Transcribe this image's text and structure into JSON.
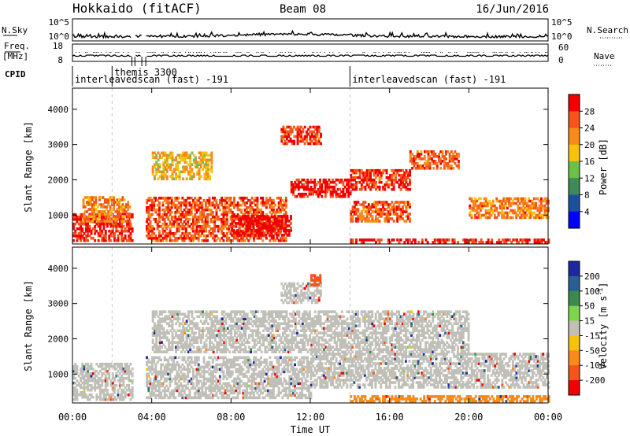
{
  "header": {
    "station": "Hokkaido (fitACF)",
    "beam": "Beam 08",
    "date": "16/Jun/2016"
  },
  "status_panels": {
    "nsky_label": "N.Sky",
    "nsearch_label": "N.Search",
    "freq_label_line1": "Freq.",
    "freq_label_line2": "[MHz]",
    "nave_label": "Nave",
    "cpid_label": "CPID",
    "noise_axis_ticks": [
      "10^5",
      "10^0"
    ],
    "freq_axis_ticks": [
      "18",
      "8"
    ],
    "nave_axis_ticks": [
      "60",
      "0"
    ],
    "cpid_segments": [
      {
        "label": "interleavedscan (fast) -191",
        "start_hour": 0.0
      },
      {
        "label": "themis 3300",
        "start_hour": 2.0
      },
      {
        "label": "interleavedscan (fast) -191",
        "start_hour": 14.0
      }
    ]
  },
  "axes": {
    "xlabel": "Time UT",
    "x_ticks": [
      "00:00",
      "04:00",
      "08:00",
      "12:00",
      "16:00",
      "20:00",
      "00:00"
    ],
    "ylabel": "Slant Range [km]",
    "y_ticks": [
      "1000",
      "2000",
      "3000",
      "4000"
    ]
  },
  "chart_data": [
    {
      "type": "heatmap",
      "name": "power",
      "xlim_hours": [
        0,
        24
      ],
      "ylim_km": [
        180,
        4600
      ],
      "colorbar_label": "Power [dB]",
      "colorbar_ticks": [
        "4",
        "8",
        "12",
        "16",
        "20",
        "24",
        "28"
      ],
      "colorbar_range": [
        0,
        30
      ],
      "colors": [
        "#0000ff",
        "#1c4fa0",
        "#3d8a5a",
        "#6cc04a",
        "#f6c20e",
        "#f98a1a",
        "#f5541a",
        "#f00000"
      ],
      "data_gaps_hours": [
        [
          3.0,
          3.15
        ],
        [
          3.5,
          3.7
        ]
      ],
      "echo_regions": [
        {
          "start_hour": 0.0,
          "end_hour": 3.0,
          "range_km": [
            250,
            1000
          ],
          "power_db": 28
        },
        {
          "start_hour": 0.5,
          "end_hour": 2.9,
          "range_km": [
            800,
            1500
          ],
          "power_db": 22
        },
        {
          "start_hour": 3.7,
          "end_hour": 10.8,
          "range_km": [
            250,
            1500
          ],
          "power_db": 25
        },
        {
          "start_hour": 8.0,
          "end_hour": 11.0,
          "range_km": [
            400,
            1000
          ],
          "power_db": 30
        },
        {
          "start_hour": 4.0,
          "end_hour": 7.0,
          "range_km": [
            2000,
            2800
          ],
          "power_db": 18
        },
        {
          "start_hour": 10.5,
          "end_hour": 12.5,
          "range_km": [
            3000,
            3500
          ],
          "power_db": 27
        },
        {
          "start_hour": 11.0,
          "end_hour": 14.0,
          "range_km": [
            1500,
            2000
          ],
          "power_db": 29
        },
        {
          "start_hour": 14.0,
          "end_hour": 17.0,
          "range_km": [
            1700,
            2300
          ],
          "power_db": 27
        },
        {
          "start_hour": 14.0,
          "end_hour": 17.0,
          "range_km": [
            800,
            1400
          ],
          "power_db": 24
        },
        {
          "start_hour": 17.0,
          "end_hour": 19.5,
          "range_km": [
            2300,
            2800
          ],
          "power_db": 24
        },
        {
          "start_hour": 20.0,
          "end_hour": 24.0,
          "range_km": [
            900,
            1500
          ],
          "power_db": 22
        },
        {
          "start_hour": 14.0,
          "end_hour": 24.0,
          "range_km": [
            200,
            320
          ],
          "power_db": 28
        }
      ]
    },
    {
      "type": "heatmap",
      "name": "velocity",
      "xlim_hours": [
        0,
        24
      ],
      "ylim_km": [
        180,
        4600
      ],
      "colorbar_label": "Velocity [m s^-1]",
      "colorbar_label_base": "Velocity [m s",
      "colorbar_label_sup": "-1",
      "colorbar_label_end": "]",
      "colorbar_ticks": [
        "200",
        "100",
        "50",
        "15",
        "-15",
        "-50",
        "-100",
        "-200"
      ],
      "colorbar_range": [
        -250,
        250
      ],
      "colors": [
        "#1c28a0",
        "#2a6090",
        "#3a8a4a",
        "#7ed44a",
        "#c0c0b8",
        "#f6c20e",
        "#f98a1a",
        "#f5541a",
        "#f00000"
      ],
      "data_gaps_hours": [
        [
          3.0,
          3.15
        ],
        [
          3.5,
          3.7
        ]
      ],
      "ground_scatter_color": "#c0c0b8",
      "echo_regions": [
        {
          "start_hour": 0.0,
          "end_hour": 3.0,
          "range_km": [
            250,
            1300
          ],
          "velocity_ms": 0
        },
        {
          "start_hour": 3.7,
          "end_hour": 12.0,
          "range_km": [
            300,
            1500
          ],
          "velocity_ms": 0
        },
        {
          "start_hour": 12.0,
          "end_hour": 24.0,
          "range_km": [
            600,
            1600
          ],
          "velocity_ms": 0
        },
        {
          "start_hour": 4.0,
          "end_hour": 20.0,
          "range_km": [
            1600,
            2800
          ],
          "velocity_ms": 0
        },
        {
          "start_hour": 10.5,
          "end_hour": 12.5,
          "range_km": [
            3000,
            3600
          ],
          "velocity_ms": 0
        },
        {
          "start_hour": 12.0,
          "end_hour": 12.5,
          "range_km": [
            3500,
            3800
          ],
          "velocity_ms": -80
        },
        {
          "start_hour": 14.0,
          "end_hour": 24.0,
          "range_km": [
            200,
            400
          ],
          "velocity_ms": -40
        }
      ]
    }
  ]
}
